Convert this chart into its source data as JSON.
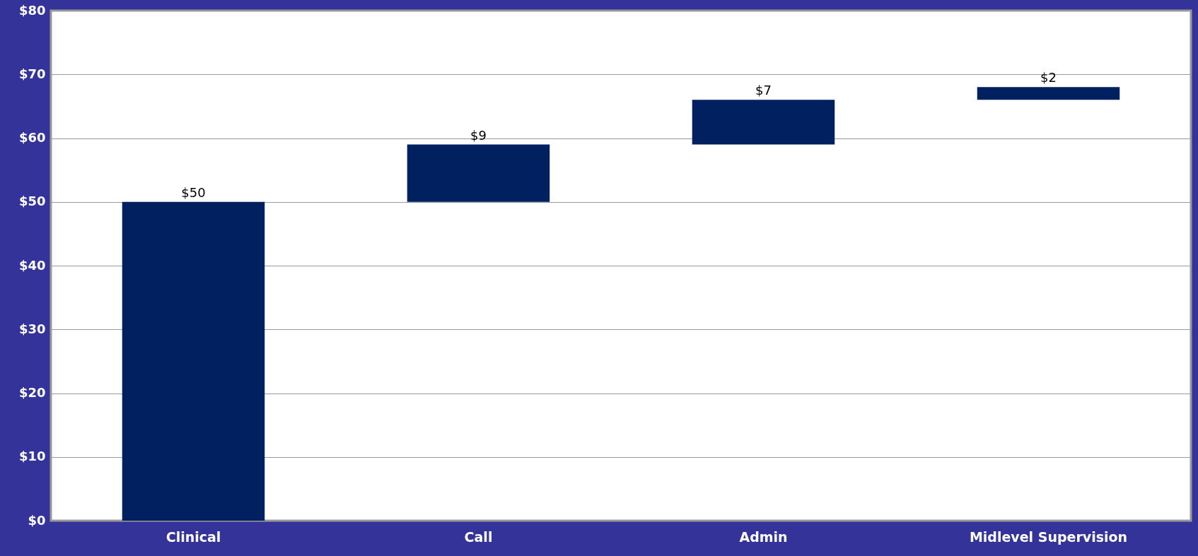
{
  "chart_data": {
    "type": "bar",
    "categories": [
      "Clinical",
      "Call",
      "Admin",
      "Midlevel Supervision"
    ],
    "values": [
      50,
      9,
      7,
      2
    ],
    "base": [
      0,
      50,
      59,
      66
    ],
    "value_labels": [
      "$50",
      "$9",
      "$7",
      "$2"
    ],
    "color": "#002060",
    "ylim": [
      0,
      80
    ],
    "yticks": [
      {
        "value": 0,
        "label": "$0"
      },
      {
        "value": 10,
        "label": "$10"
      },
      {
        "value": 20,
        "label": "$20"
      },
      {
        "value": 30,
        "label": "$30"
      },
      {
        "value": 40,
        "label": "$40"
      },
      {
        "value": 50,
        "label": "$50"
      },
      {
        "value": 60,
        "label": "$60"
      },
      {
        "value": 70,
        "label": "$70"
      },
      {
        "value": 80,
        "label": "$80"
      }
    ],
    "grid": "y"
  }
}
